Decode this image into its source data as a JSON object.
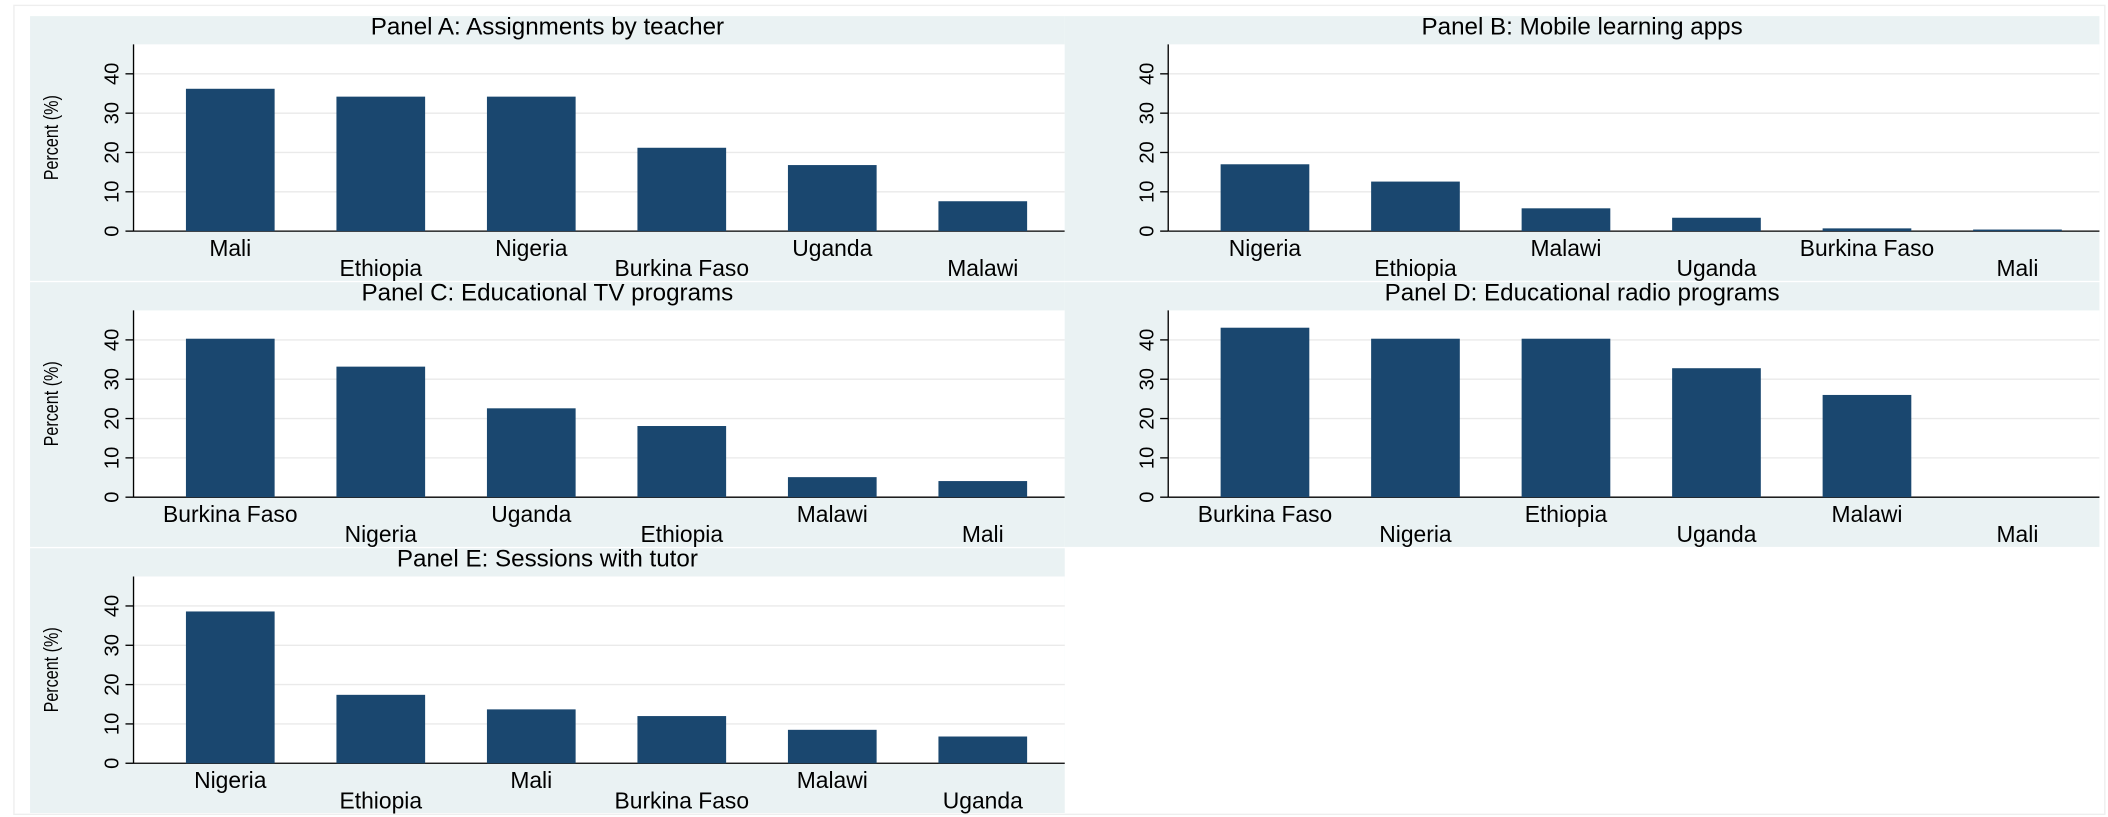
{
  "chart_data": [
    {
      "type": "bar",
      "title": "Panel A: Assignments by teacher",
      "ylabel": "Percent (%)",
      "categories": [
        "Mali",
        "Ethiopia",
        "Nigeria",
        "Burkina Faso",
        "Uganda",
        "Malawi"
      ],
      "values": [
        36.2,
        34.2,
        34.2,
        21.2,
        16.8,
        7.6
      ],
      "color": "#1a476f",
      "ylim": [
        0,
        47.5
      ],
      "yticks": [
        0,
        10,
        20,
        30,
        40
      ],
      "grid": true
    },
    {
      "type": "bar",
      "title": "Panel B: Mobile learning apps",
      "categories": [
        "Nigeria",
        "Ethiopia",
        "Malawi",
        "Uganda",
        "Burkina Faso",
        "Mali"
      ],
      "values": [
        17,
        12.6,
        5.8,
        3.4,
        0.7,
        0.4
      ],
      "color": "#1a476f",
      "ylim": [
        0,
        47.5
      ],
      "yticks": [
        0,
        10,
        20,
        30,
        40
      ],
      "grid": true
    },
    {
      "type": "bar",
      "title": "Panel C: Educational TV programs",
      "ylabel": "Percent (%)",
      "categories": [
        "Burkina Faso",
        "Nigeria",
        "Uganda",
        "Ethiopia",
        "Malawi",
        "Mali"
      ],
      "values": [
        40.3,
        33.2,
        22.6,
        18.1,
        5.1,
        4.1
      ],
      "color": "#1a476f",
      "ylim": [
        0,
        47.5
      ],
      "yticks": [
        0,
        10,
        20,
        30,
        40
      ],
      "grid": true
    },
    {
      "type": "bar",
      "title": "Panel D: Educational radio programs",
      "categories": [
        "Burkina Faso",
        "Nigeria",
        "Ethiopia",
        "Uganda",
        "Malawi",
        "Mali"
      ],
      "values": [
        43.1,
        40.3,
        40.3,
        32.8,
        26,
        0
      ],
      "color": "#1a476f",
      "ylim": [
        0,
        47.5
      ],
      "yticks": [
        0,
        10,
        20,
        30,
        40
      ],
      "grid": true
    },
    {
      "type": "bar",
      "title": "Panel E: Sessions with tutor",
      "ylabel": "Percent (%)",
      "categories": [
        "Nigeria",
        "Ethiopia",
        "Mali",
        "Burkina Faso",
        "Malawi",
        "Uganda"
      ],
      "values": [
        38.6,
        17.4,
        13.7,
        12,
        8.5,
        6.8
      ],
      "color": "#1a476f",
      "ylim": [
        0,
        47.5
      ],
      "yticks": [
        0,
        10,
        20,
        30,
        40
      ],
      "grid": true
    }
  ]
}
